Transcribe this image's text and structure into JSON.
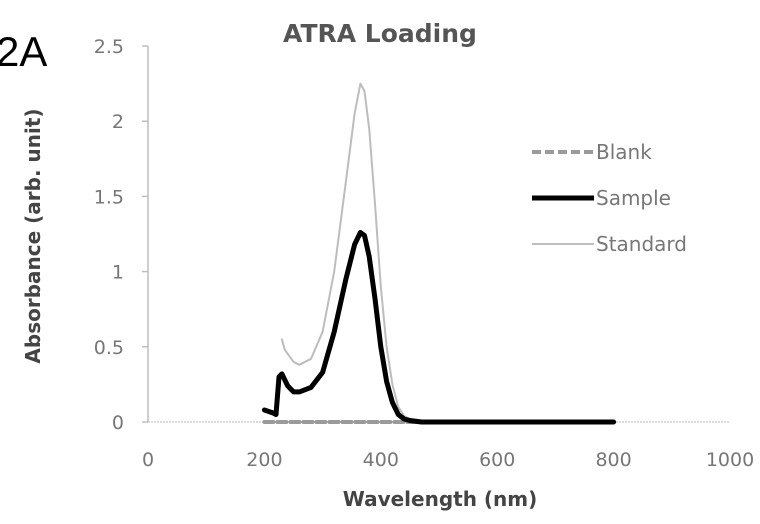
{
  "figure_label": "2A",
  "chart_data": {
    "type": "line",
    "title": "ATRA Loading",
    "xlabel": "Wavelength (nm)",
    "ylabel": "Absorbance (arb. unit)",
    "xlim": [
      0,
      1000
    ],
    "ylim": [
      0,
      2.5
    ],
    "xticks": [
      "0",
      "200",
      "400",
      "600",
      "800",
      "1000"
    ],
    "yticks": [
      "0",
      "0.5",
      "1",
      "1.5",
      "2",
      "2.5"
    ],
    "grid": false,
    "legend_position": "right",
    "series": [
      {
        "name": "Blank",
        "style": "dashed",
        "color": "#9a9a9a",
        "x": [
          200,
          300,
          400,
          500,
          600,
          700,
          800
        ],
        "y": [
          0,
          0,
          0,
          0,
          0,
          0,
          0
        ]
      },
      {
        "name": "Sample",
        "style": "solid-thick",
        "color": "#000000",
        "x": [
          200,
          215,
          220,
          225,
          230,
          240,
          250,
          260,
          280,
          300,
          320,
          340,
          355,
          365,
          372,
          380,
          390,
          400,
          410,
          420,
          430,
          440,
          450,
          470,
          500,
          600,
          700,
          800
        ],
        "y": [
          0.08,
          0.06,
          0.05,
          0.3,
          0.32,
          0.24,
          0.2,
          0.2,
          0.23,
          0.33,
          0.6,
          0.95,
          1.18,
          1.26,
          1.24,
          1.1,
          0.82,
          0.5,
          0.27,
          0.13,
          0.05,
          0.02,
          0.01,
          0,
          0,
          0,
          0,
          0
        ]
      },
      {
        "name": "Standard",
        "style": "solid-thin",
        "color": "#bdbdbd",
        "x": [
          230,
          235,
          250,
          260,
          280,
          300,
          320,
          340,
          355,
          365,
          372,
          380,
          390,
          400,
          410,
          420,
          430,
          440,
          450,
          470,
          500,
          600,
          700,
          800
        ],
        "y": [
          0.55,
          0.48,
          0.4,
          0.38,
          0.42,
          0.6,
          1.0,
          1.6,
          2.05,
          2.25,
          2.2,
          1.95,
          1.45,
          0.9,
          0.5,
          0.25,
          0.1,
          0.04,
          0.02,
          0,
          0,
          0,
          0,
          0
        ]
      }
    ]
  }
}
